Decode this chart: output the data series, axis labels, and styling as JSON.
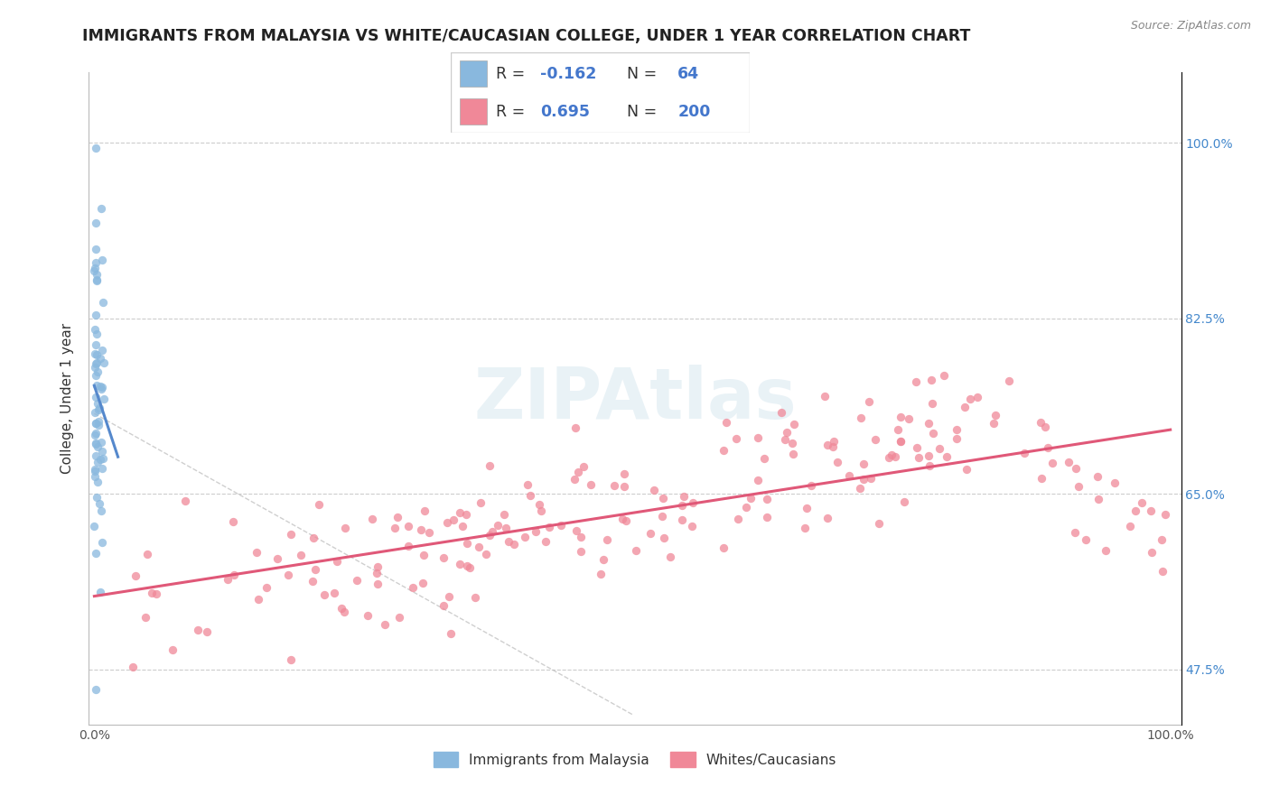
{
  "title": "IMMIGRANTS FROM MALAYSIA VS WHITE/CAUCASIAN COLLEGE, UNDER 1 YEAR CORRELATION CHART",
  "source": "Source: ZipAtlas.com",
  "ylabel": "College, Under 1 year",
  "ytick_labels": [
    "47.5%",
    "65.0%",
    "82.5%",
    "100.0%"
  ],
  "ytick_values": [
    0.475,
    0.65,
    0.825,
    1.0
  ],
  "xtick_labels": [
    "0.0%",
    "100.0%"
  ],
  "xtick_values": [
    0.0,
    1.0
  ],
  "blue_R": -0.162,
  "blue_N": 64,
  "pink_R": 0.695,
  "pink_N": 200,
  "blue_dot_color": "#89b8de",
  "pink_dot_color": "#f08898",
  "blue_line_color": "#5588cc",
  "pink_line_color": "#e05878",
  "legend_label_blue": "Immigrants from Malaysia",
  "legend_label_pink": "Whites/Caucasians",
  "watermark": "ZIPAtlas",
  "title_fontsize": 12.5,
  "axis_label_fontsize": 11,
  "tick_fontsize": 10,
  "source_fontsize": 9,
  "legend_fontsize": 11,
  "ylim_lo": 0.42,
  "ylim_hi": 1.07,
  "xlim_lo": -0.005,
  "xlim_hi": 1.01
}
